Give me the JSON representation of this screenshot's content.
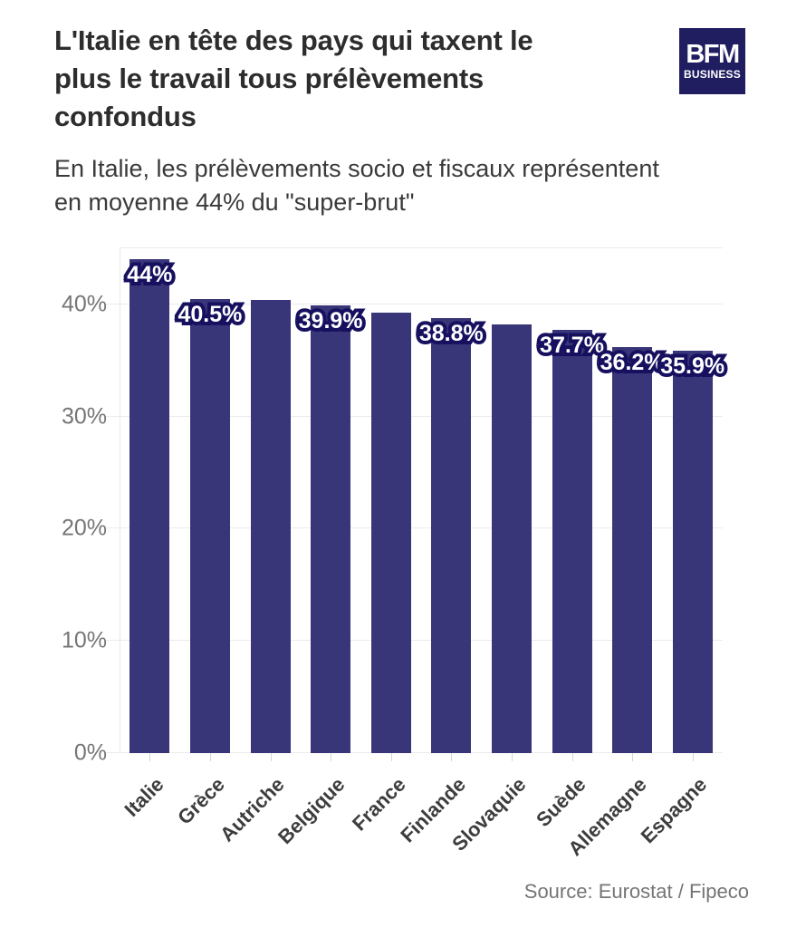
{
  "header": {
    "title_lines": [
      "L'Italie en tête des pays qui taxent le",
      "plus le travail tous prélèvements",
      "confondus"
    ],
    "subtitle_lines": [
      "En Italie, les prélèvements socio et fiscaux représentent",
      "en moyenne 44% du \"super-brut\""
    ],
    "logo": {
      "line1": "BFM",
      "line2": "BUSINESS",
      "bg_color": "#201d60"
    }
  },
  "footer": {
    "source": "Source: Eurostat / Fipeco"
  },
  "chart_data": {
    "type": "bar",
    "title": "L'Italie en tête des pays qui taxent le plus le travail tous prélèvements confondus",
    "subtitle": "En Italie, les prélèvements socio et fiscaux représentent en moyenne 44% du \"super-brut\"",
    "categories": [
      "Italie",
      "Grèce",
      "Autriche",
      "Belgique",
      "France",
      "Finlande",
      "Slovaquie",
      "Suède",
      "Allemagne",
      "Espagne"
    ],
    "values": [
      44,
      40.5,
      40.4,
      39.9,
      39.3,
      38.8,
      38.2,
      37.7,
      36.2,
      35.9
    ],
    "bar_labels": [
      "44%",
      "40.5%",
      "",
      "39.9%",
      "",
      "38.8%",
      "",
      "37.7%",
      "36.2%",
      "35.9%"
    ],
    "y_ticks": [
      0,
      10,
      20,
      30,
      40
    ],
    "y_tick_labels": [
      "0%",
      "10%",
      "20%",
      "30%",
      "40%"
    ],
    "gridlines": [
      0,
      10,
      20,
      30,
      40,
      45
    ],
    "ylim": [
      0,
      45
    ],
    "xlabel": "",
    "ylabel": "",
    "grid": true,
    "legend": false,
    "source": "Source: Eurostat / Fipeco",
    "colors": {
      "bar": "#383578",
      "bar_label_fill": "#ffffff",
      "bar_label_outline": "#16105f",
      "gridline": "#ebebeb",
      "tick_label": "#757575",
      "x_label": "#3d3d3d"
    }
  }
}
